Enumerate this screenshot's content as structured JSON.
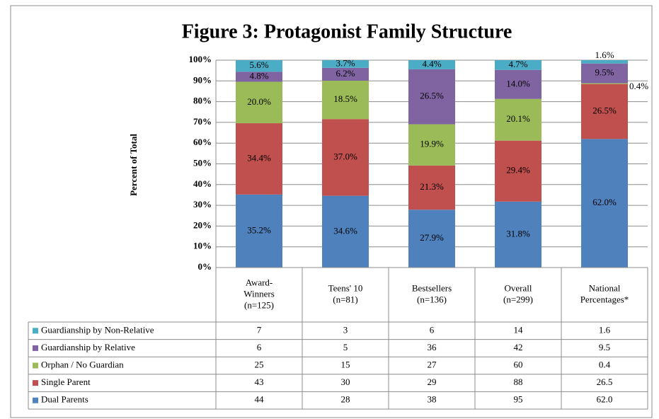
{
  "chart_data": {
    "type": "bar",
    "stacked": true,
    "title": "Figure 3: Protagonist Family Structure",
    "y_label": "Percent of Total",
    "categories": [
      [
        "Award-",
        "Winners",
        "(n=125)"
      ],
      [
        "Teens' 10",
        "(n=81)"
      ],
      [
        "Bestsellers",
        "(n=136)"
      ],
      [
        "Overall",
        "(n=299)"
      ],
      [
        "National",
        "Percentages*"
      ]
    ],
    "ylim": [
      0,
      100
    ],
    "yticks": [
      {
        "value": 0,
        "label": "0%"
      },
      {
        "value": 10,
        "label": "10%"
      },
      {
        "value": 20,
        "label": "20%"
      },
      {
        "value": 30,
        "label": "30%"
      },
      {
        "value": 40,
        "label": "40%"
      },
      {
        "value": 50,
        "label": "50%"
      },
      {
        "value": 60,
        "label": "60%"
      },
      {
        "value": 70,
        "label": "70%"
      },
      {
        "value": 80,
        "label": "80%"
      },
      {
        "value": 90,
        "label": "90%"
      },
      {
        "value": 100,
        "label": "100%"
      }
    ],
    "grid": true,
    "series": [
      {
        "name": "Dual Parents",
        "color": "#4f81bd",
        "values": [
          35.2,
          34.6,
          27.9,
          31.8,
          62
        ],
        "value_labels": [
          "35.2%",
          "34.6%",
          "27.9%",
          "31.8%",
          "62.0%"
        ],
        "counts": [
          44,
          28,
          38,
          95,
          62
        ],
        "count_labels": [
          "44",
          "28",
          "38",
          "95",
          "62.0"
        ]
      },
      {
        "name": "Single Parent",
        "color": "#c0504d",
        "values": [
          34.4,
          37,
          21.3,
          29.4,
          26.5
        ],
        "value_labels": [
          "34.4%",
          "37.0%",
          "21.3%",
          "29.4%",
          "26.5%"
        ],
        "counts": [
          43,
          30,
          29,
          88,
          26.5
        ],
        "count_labels": [
          "43",
          "30",
          "29",
          "88",
          "26.5"
        ]
      },
      {
        "name": "Orphan / No Guardian",
        "color": "#9bbb59",
        "values": [
          20,
          18.5,
          19.9,
          20.1,
          0.4
        ],
        "value_labels": [
          "20.0%",
          "18.5%",
          "19.9%",
          "20.1%",
          "0.4%"
        ],
        "counts": [
          25,
          15,
          27,
          60,
          0.4
        ],
        "count_labels": [
          "25",
          "15",
          "27",
          "60",
          "0.4"
        ]
      },
      {
        "name": "Guardianship by Relative",
        "color": "#8064a2",
        "values": [
          4.8,
          6.2,
          26.5,
          14,
          9.5
        ],
        "value_labels": [
          "4.8%",
          "6.2%",
          "26.5%",
          "14.0%",
          "9.5%"
        ],
        "counts": [
          6,
          5,
          36,
          42,
          9.5
        ],
        "count_labels": [
          "6",
          "5",
          "36",
          "42",
          "9.5"
        ]
      },
      {
        "name": "Guardianship by Non-Relative",
        "color": "#4bacc6",
        "values": [
          5.6,
          3.7,
          4.4,
          4.7,
          1.6
        ],
        "value_labels": [
          "5.6%",
          "3.7%",
          "4.4%",
          "4.7%",
          "1.6%"
        ],
        "counts": [
          7,
          3,
          6,
          14,
          1.6
        ],
        "count_labels": [
          "7",
          "3",
          "6",
          "14",
          "1.6"
        ]
      }
    ]
  }
}
